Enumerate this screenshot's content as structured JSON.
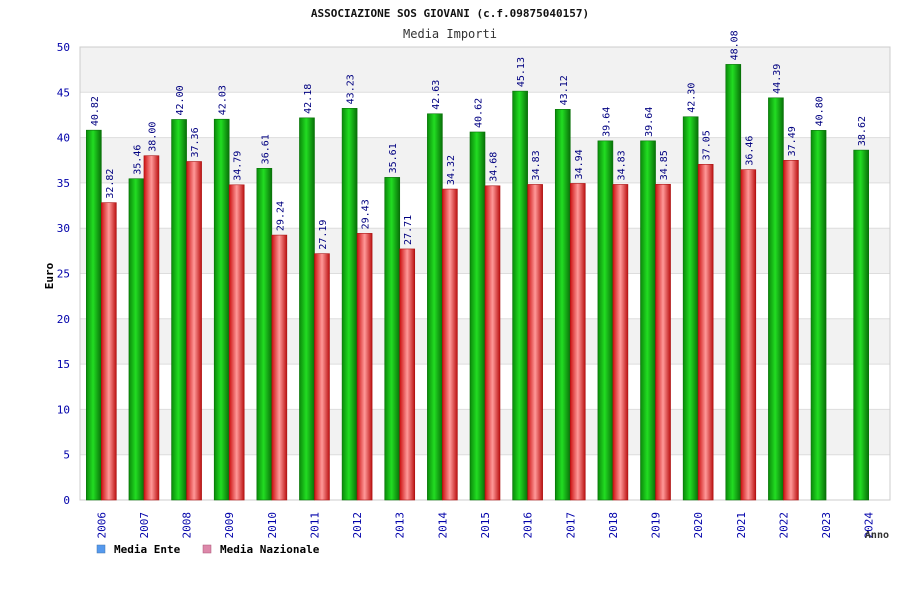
{
  "chart_data": {
    "type": "bar",
    "title": "ASSOCIAZIONE SOS GIOVANI (c.f.09875040157)",
    "subtitle": "Media Importi",
    "ylabel": "Euro",
    "xlabel": "Anno",
    "ylim": [
      0,
      50
    ],
    "yticks": [
      0,
      5,
      10,
      15,
      20,
      25,
      30,
      35,
      40,
      45,
      50
    ],
    "grid": true,
    "legend_position": "bottom-left",
    "categories": [
      "2006",
      "2007",
      "2008",
      "2009",
      "2010",
      "2011",
      "2012",
      "2013",
      "2014",
      "2015",
      "2016",
      "2017",
      "2018",
      "2019",
      "2020",
      "2021",
      "2022",
      "2023",
      "2024"
    ],
    "series": [
      {
        "name": "Media Ente",
        "values": [
          40.82,
          35.46,
          42.0,
          42.03,
          36.61,
          42.18,
          43.23,
          35.61,
          42.63,
          40.62,
          45.13,
          43.12,
          39.64,
          39.64,
          42.3,
          48.08,
          44.39,
          40.8,
          38.62
        ],
        "labels": [
          "40.82",
          "35.46",
          "42.00",
          "42.03",
          "36.61",
          "42.18",
          "43.23",
          "35.61",
          "42.63",
          "40.62",
          "45.13",
          "43.12",
          "39.64",
          "39.64",
          "42.30",
          "48.08",
          "44.39",
          "40.80",
          "38.62"
        ]
      },
      {
        "name": "Media Nazionale",
        "values": [
          32.82,
          38.0,
          37.36,
          34.79,
          29.24,
          27.19,
          29.43,
          27.71,
          34.32,
          34.68,
          34.83,
          34.94,
          34.83,
          34.85,
          37.05,
          36.46,
          37.49,
          null,
          null
        ],
        "labels": [
          "32.82",
          "38.00",
          "37.36",
          "34.79",
          "29.24",
          "27.19",
          "29.43",
          "27.71",
          "34.32",
          "34.68",
          "34.83",
          "34.94",
          "34.83",
          "34.85",
          "37.05",
          "36.46",
          "37.49",
          null,
          null
        ]
      }
    ],
    "colors": {
      "ente_bar": "#11bb11",
      "naz_bar": "#ee3333",
      "legend_ente": "#5599ee",
      "legend_naz": "#dd88aa",
      "band": "#f2f2f2",
      "axis_text": "#0000aa"
    }
  }
}
